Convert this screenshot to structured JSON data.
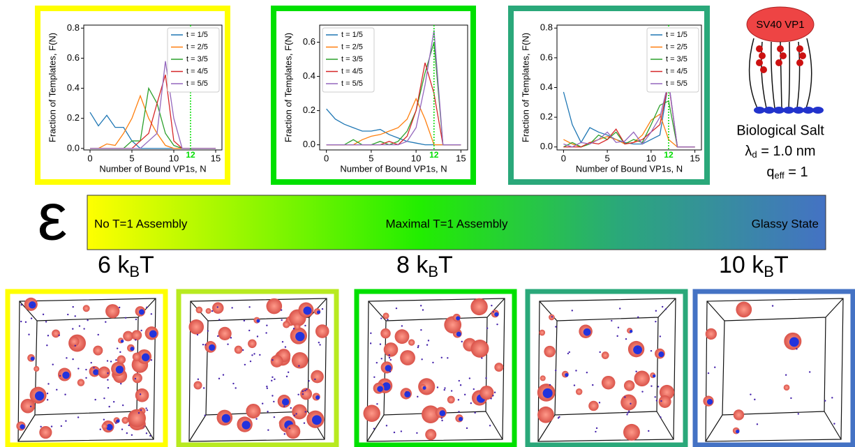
{
  "chart_data": [
    {
      "type": "line",
      "xlabel": "Number of Bound VP1s, N",
      "ylabel": "Fraction of Templates, F(N)",
      "x": [
        0,
        1,
        2,
        3,
        4,
        5,
        6,
        7,
        8,
        9,
        10,
        11,
        12,
        13,
        14,
        15
      ],
      "xlim": [
        -0.75,
        15.75
      ],
      "ylim": [
        -0.01,
        0.82
      ],
      "xticks": [
        0,
        5,
        10,
        15
      ],
      "yticks": [
        {
          "value": 0,
          "label": "0.0"
        },
        0.2,
        0.4,
        0.6,
        0.8
      ],
      "legend": "upper right",
      "frame_color": "#ffff00",
      "vline": 12,
      "vline_color": "#00dd00",
      "series": [
        {
          "name": "t = 1/5",
          "color": "#1f77b4",
          "values": [
            0.24,
            0.15,
            0.22,
            0.14,
            0.14,
            0.05,
            0,
            0,
            0,
            0,
            0,
            0,
            0,
            0,
            0,
            0
          ]
        },
        {
          "name": "t = 2/5",
          "color": "#ff7f0e",
          "values": [
            0,
            0,
            0.03,
            0.02,
            0.1,
            0.2,
            0.35,
            0.2,
            0.1,
            0.02,
            0,
            0,
            0,
            0,
            0,
            0
          ]
        },
        {
          "name": "t = 3/5",
          "color": "#2ca02c",
          "values": [
            0,
            0,
            0,
            0,
            0,
            0.05,
            0.05,
            0.4,
            0.3,
            0.1,
            0.02,
            0,
            0,
            0,
            0,
            0
          ]
        },
        {
          "name": "t = 4/5",
          "color": "#d62728",
          "values": [
            0,
            0,
            0,
            0,
            0,
            0,
            0.05,
            0.1,
            0.3,
            0.49,
            0.05,
            0,
            0,
            0,
            0,
            0
          ]
        },
        {
          "name": "t = 5/5",
          "color": "#9467bd",
          "values": [
            0,
            0,
            0,
            0,
            0,
            0,
            0,
            0.05,
            0.1,
            0.58,
            0.2,
            0,
            0,
            0,
            0,
            0
          ]
        }
      ]
    },
    {
      "type": "line",
      "xlabel": "Number of Bound VP1s, N",
      "ylabel": "Fraction of Templates, F(N)",
      "x": [
        0,
        1,
        2,
        3,
        4,
        5,
        6,
        7,
        8,
        9,
        10,
        11,
        12,
        13,
        14,
        15
      ],
      "xlim": [
        -0.75,
        15.75
      ],
      "ylim": [
        -0.03,
        0.7
      ],
      "xticks": [
        0,
        5,
        10,
        15
      ],
      "yticks": [
        {
          "value": 0,
          "label": "0.0"
        },
        0.2,
        0.4,
        0.6
      ],
      "legend": "upper left",
      "frame_color": "#00e000",
      "vline": 12,
      "vline_color": "#00dd00",
      "series": [
        {
          "name": "t = 1/5",
          "color": "#1f77b4",
          "values": [
            0.21,
            0.15,
            0.12,
            0.1,
            0.08,
            0.08,
            0.09,
            0.06,
            0.04,
            0.02,
            0.01,
            0,
            0,
            0,
            0,
            0
          ]
        },
        {
          "name": "t = 2/5",
          "color": "#ff7f0e",
          "values": [
            0,
            0,
            0,
            0,
            0.03,
            0.05,
            0.06,
            0.08,
            0.1,
            0.15,
            0.27,
            0.15,
            0,
            0,
            0,
            0
          ]
        },
        {
          "name": "t = 3/5",
          "color": "#2ca02c",
          "values": [
            0,
            0,
            0,
            0.03,
            0,
            0,
            0.02,
            0,
            0.02,
            0.08,
            0.2,
            0.42,
            0.6,
            0,
            0,
            0
          ]
        },
        {
          "name": "t = 4/5",
          "color": "#d62728",
          "values": [
            0,
            0,
            0,
            0,
            0,
            0,
            0,
            0.02,
            0,
            0.05,
            0.2,
            0.48,
            0.3,
            0,
            0,
            0
          ]
        },
        {
          "name": "t = 5/5",
          "color": "#9467bd",
          "values": [
            0,
            0,
            0,
            0,
            0,
            0,
            0,
            0,
            0,
            0.02,
            0.1,
            0.35,
            0.67,
            0,
            0,
            0
          ]
        }
      ]
    },
    {
      "type": "line",
      "xlabel": "Number of Bound VP1s, N",
      "ylabel": "Fraction of Templates, F(N)",
      "x": [
        0,
        1,
        2,
        3,
        4,
        5,
        6,
        7,
        8,
        9,
        10,
        11,
        12,
        13,
        14,
        15
      ],
      "xlim": [
        -0.75,
        15.75
      ],
      "ylim": [
        -0.02,
        0.82
      ],
      "xticks": [
        0,
        5,
        10,
        15
      ],
      "yticks": [
        {
          "value": 0,
          "label": "0.0"
        },
        0.2,
        0.4,
        0.6,
        0.8
      ],
      "legend": "upper right",
      "frame_color": "#2aa87a",
      "vline": 12,
      "vline_color": "#00dd00",
      "series": [
        {
          "name": "t = 1/5",
          "color": "#1f77b4",
          "values": [
            0.37,
            0.15,
            0.03,
            0.13,
            0.1,
            0.08,
            0.05,
            0.03,
            0.02,
            0.02,
            0.05,
            0.08,
            0.44,
            0,
            0,
            0
          ]
        },
        {
          "name": "t = 2/5",
          "color": "#ff7f0e",
          "values": [
            0.05,
            0.02,
            0,
            0.03,
            0.05,
            0.07,
            0.05,
            0.02,
            0.03,
            0.08,
            0.18,
            0.22,
            0.05,
            0,
            0,
            0
          ]
        },
        {
          "name": "t = 3/5",
          "color": "#2ca02c",
          "values": [
            0,
            0.03,
            0,
            0.02,
            0.08,
            0.05,
            0.1,
            0.02,
            0.05,
            0.03,
            0.15,
            0.28,
            0.31,
            0,
            0,
            0
          ]
        },
        {
          "name": "t = 4/5",
          "color": "#d62728",
          "values": [
            0,
            0,
            0,
            0.03,
            0.02,
            0.05,
            0.12,
            0.02,
            0.03,
            0.05,
            0.1,
            0.15,
            0.43,
            0,
            0,
            0
          ]
        },
        {
          "name": "t = 5/5",
          "color": "#9467bd",
          "values": [
            0.02,
            0,
            0.03,
            0.02,
            0.05,
            0.1,
            0.03,
            0.04,
            0.1,
            0.02,
            0.1,
            0.2,
            0.44,
            0,
            0,
            0
          ]
        }
      ]
    }
  ],
  "diagram": {
    "protein": "SV40 VP1",
    "salt": "Biological Salt",
    "lambda": "λ",
    "lambda_sub": "d",
    "lambda_rest": " = 1.0 nm",
    "q": "q",
    "q_sub": "eff",
    "q_rest": " = 1"
  },
  "scale": {
    "symbol": "ε",
    "left": "No T=1 Assembly",
    "middle": "Maximal T=1 Assembly",
    "right": "Glassy State",
    "energies": [
      {
        "pre": "6 k",
        "sub": "B",
        "post": "T"
      },
      {
        "pre": "8 k",
        "sub": "B",
        "post": "T"
      },
      {
        "pre": "10 k",
        "sub": "B",
        "post": "T"
      }
    ]
  }
}
